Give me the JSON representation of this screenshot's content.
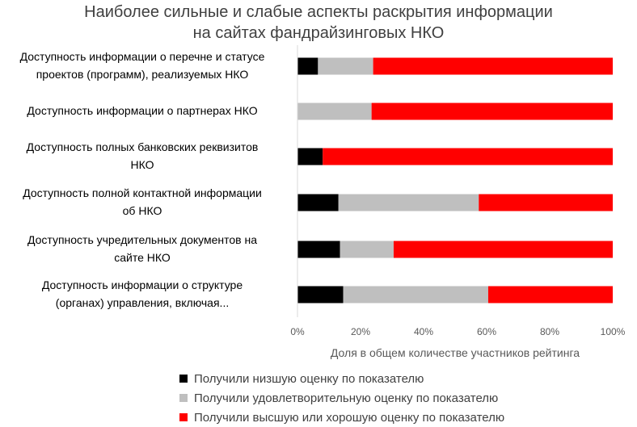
{
  "chart_data": {
    "type": "bar",
    "orientation": "horizontal",
    "stacked": "percent",
    "title_lines": [
      "Наиболее сильные и слабые аспекты раскрытия информации",
      "на сайтах фандрайзинговых НКО"
    ],
    "categories": [
      [
        "Доступность информации о перечне и статусе",
        "проектов (программ), реализуемых НКО"
      ],
      [
        "Доступность информации о партнерах НКО"
      ],
      [
        "Доступность полных банковских реквизитов",
        "НКО"
      ],
      [
        "Доступность полной контактной информации",
        "об НКО"
      ],
      [
        "Доступность учредительных документов на",
        "сайте НКО"
      ],
      [
        "Доступность информации о структуре",
        "(органах) управления, включая..."
      ]
    ],
    "series": [
      {
        "name": "Получили низшую оценку по показателю",
        "color": "#000000",
        "values": [
          6.5,
          0,
          8,
          13,
          13.5,
          14.5
        ]
      },
      {
        "name": "Получили удовлетворительную оценку по показателю",
        "color": "#bfbfbf",
        "values": [
          17.5,
          23.5,
          0,
          44.5,
          17,
          46
        ]
      },
      {
        "name": "Получили высшую или хорошую оценку по показателю",
        "color": "#ff0000",
        "values": [
          76,
          76.5,
          92,
          42.5,
          69.5,
          39.5
        ]
      }
    ],
    "xlim": [
      0,
      100
    ],
    "x_ticks": [
      "0%",
      "20%",
      "40%",
      "60%",
      "80%",
      "100%"
    ],
    "xlabel": "Доля в общем количестве участников рейтинга",
    "ylabel": "",
    "grid": false,
    "legend_position": "bottom"
  }
}
